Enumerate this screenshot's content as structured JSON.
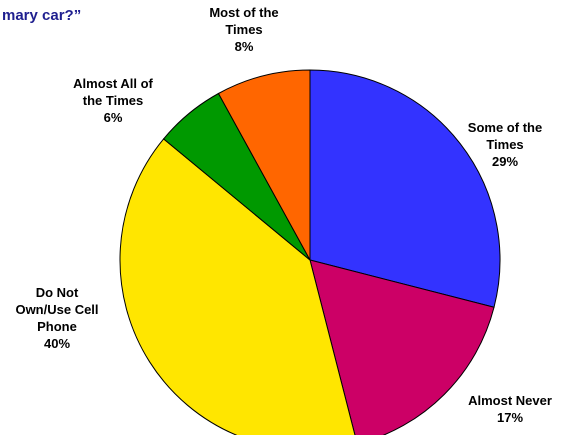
{
  "chart_data": {
    "type": "pie",
    "title": "mary car?”",
    "slices": [
      {
        "label_lines": [
          "Some of the",
          "Times"
        ],
        "pct_label": "29%",
        "value": 29,
        "color": "#3333ff"
      },
      {
        "label_lines": [
          "Almost Never"
        ],
        "pct_label": "17%",
        "value": 17,
        "color": "#cc0066"
      },
      {
        "label_lines": [
          "Do Not",
          "Own/Use Cell",
          "Phone"
        ],
        "pct_label": "40%",
        "value": 40,
        "color": "#ffe600"
      },
      {
        "label_lines": [
          "Almost All of",
          "the Times"
        ],
        "pct_label": "6%",
        "value": 6,
        "color": "#009900"
      },
      {
        "label_lines": [
          "Most of the",
          "Times"
        ],
        "pct_label": "8%",
        "value": 8,
        "color": "#ff6600"
      }
    ],
    "start_angle": "top",
    "direction": "clockwise",
    "legend": "none"
  }
}
